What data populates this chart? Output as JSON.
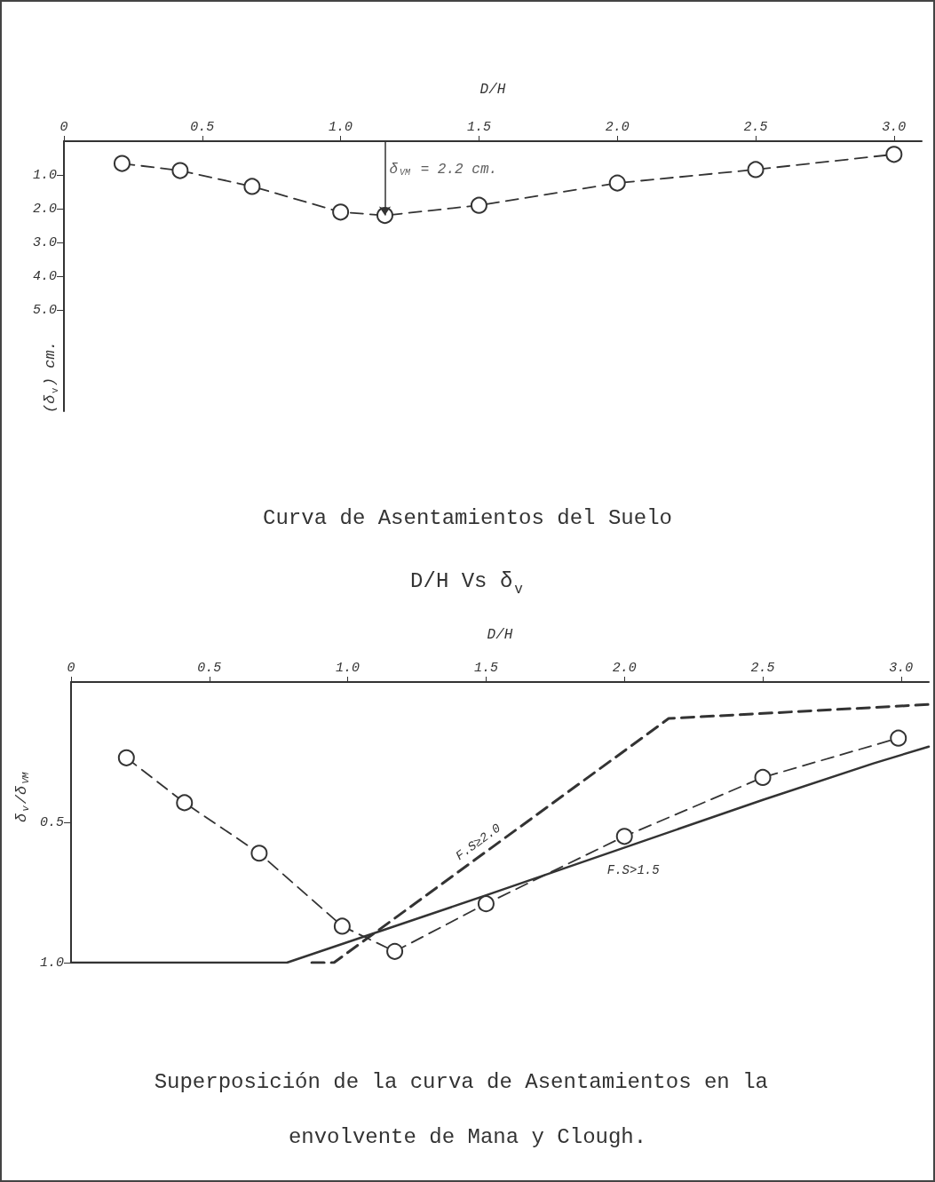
{
  "chart_data": [
    {
      "type": "line",
      "title": "Curva de Asentamientos del Suelo",
      "subtitle": "D/H Vs δ$_{v}$",
      "xlabel": "D/H",
      "ylabel": "(δ$_{v}$) cm.",
      "xlim": [
        0,
        3.1
      ],
      "xticks": [
        0,
        0.5,
        {
          "value": 1,
          "label": "1.0"
        },
        1.5,
        {
          "value": 2,
          "label": "2.0"
        },
        2.5,
        {
          "value": 3,
          "label": "3.0"
        }
      ],
      "ylim": [
        8,
        0
      ],
      "yticks": [
        {
          "value": 1,
          "label": "1.0"
        },
        {
          "value": 2,
          "label": "2.0"
        },
        {
          "value": 3,
          "label": "3.0"
        },
        {
          "value": 4,
          "label": "4.0"
        },
        {
          "value": 5,
          "label": "5.0"
        }
      ],
      "grid": false,
      "marker": "circle",
      "line_style": "dashed",
      "series": [
        {
          "color": "#333333",
          "x": [
            0.21,
            0.42,
            0.68,
            1.0,
            1.16,
            1.5,
            2.0,
            2.5,
            3.0
          ],
          "values": [
            0.66,
            0.87,
            1.34,
            2.1,
            2.2,
            1.9,
            1.24,
            0.84,
            0.39
          ]
        }
      ],
      "annotations": [
        {
          "text": "δ$_{VM}$ = 2.2 cm.",
          "x": 1.16,
          "y": 2.2
        }
      ]
    },
    {
      "type": "line",
      "title": "Superposición de la curva de Asentamientos en la envolvente de Mana y Clough.",
      "xlabel": "D/H",
      "ylabel": "δ$_{v}$/δ$_{VM}$",
      "xlim": [
        0,
        3.1
      ],
      "xticks": [
        0,
        0.5,
        {
          "value": 1,
          "label": "1.0"
        },
        1.5,
        {
          "value": 2,
          "label": "2.0"
        },
        2.5,
        {
          "value": 3,
          "label": "3.0"
        }
      ],
      "ylim": [
        1,
        0
      ],
      "yticks": [
        0.5,
        {
          "value": 1,
          "label": "1.0"
        }
      ],
      "grid": false,
      "series": [
        {
          "color": "#333333",
          "marker": "circle",
          "line_style": "dashed",
          "x": [
            0.2,
            0.41,
            0.68,
            0.98,
            1.17,
            1.5,
            2.0,
            2.5,
            2.99
          ],
          "values": [
            0.27,
            0.43,
            0.61,
            0.87,
            0.96,
            0.79,
            0.55,
            0.34,
            0.2
          ]
        },
        {
          "name": "F.S≥2.0",
          "color": "#333333",
          "marker": "none",
          "line_style": "dashed",
          "x": [
            0.87,
            0.95,
            2.16,
            3.1
          ],
          "values": [
            1.0,
            1.0,
            0.13,
            0.08
          ]
        },
        {
          "name": "F.S>1.5",
          "color": "#333333",
          "marker": "none",
          "line_style": "solid",
          "x": [
            0,
            0.78,
            1.5,
            2.5,
            2.9,
            3.1
          ],
          "values": [
            1.0,
            1.0,
            0.76,
            0.42,
            0.29,
            0.23
          ]
        }
      ]
    }
  ]
}
